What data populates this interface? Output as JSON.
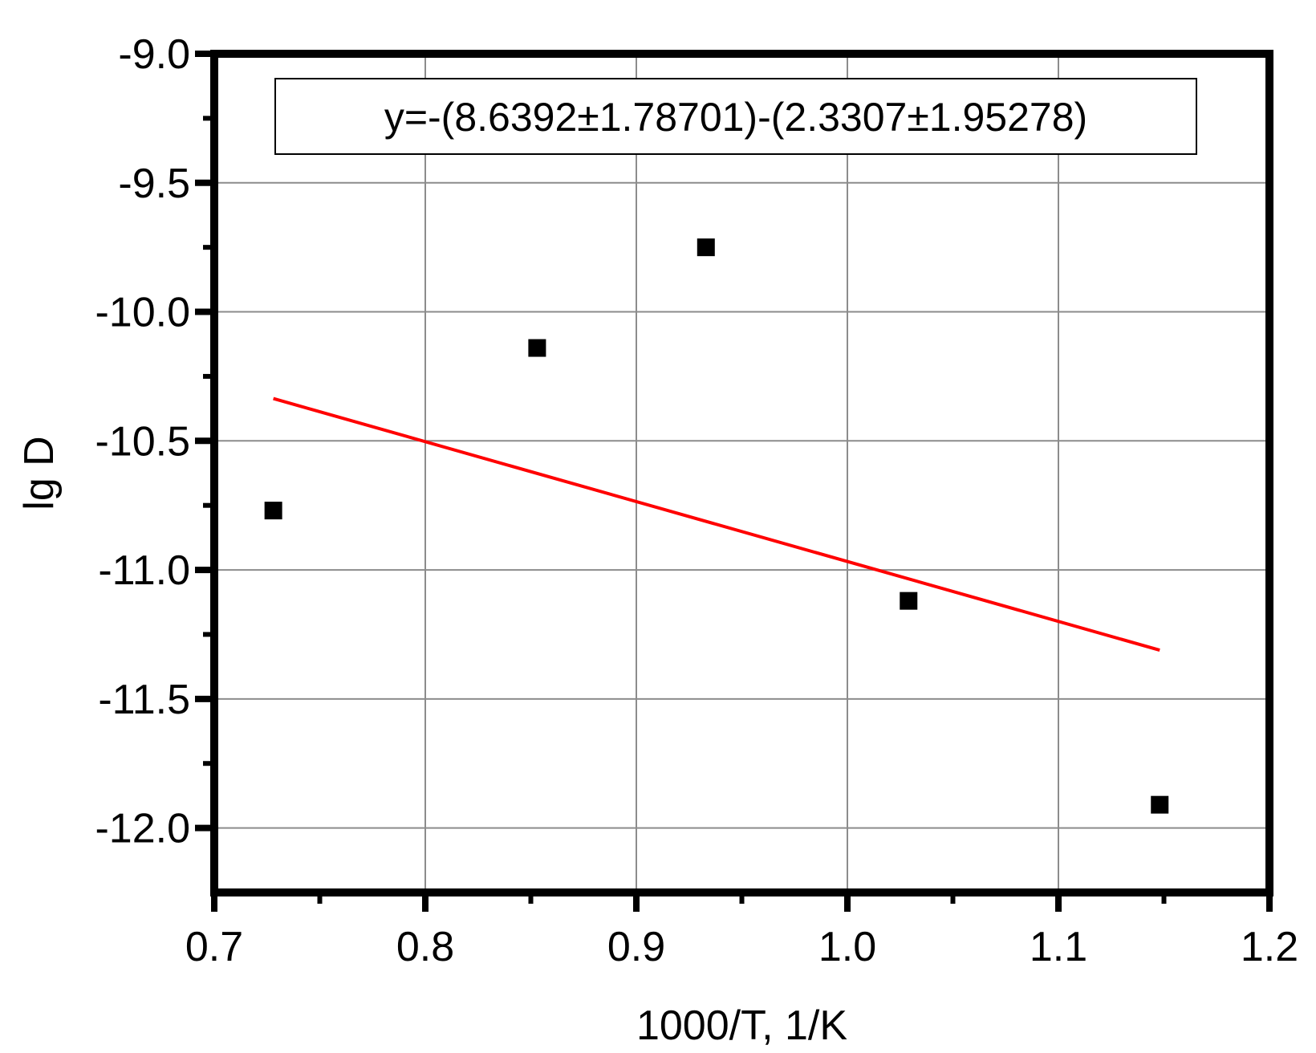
{
  "chart_data": {
    "type": "scatter",
    "xlabel": "1000/T, 1/K",
    "ylabel": "lg D",
    "xlim": [
      0.7,
      1.2
    ],
    "ylim": [
      -12.25,
      -9.0
    ],
    "xticks": [
      0.7,
      0.8,
      0.9,
      1.0,
      1.1,
      1.2
    ],
    "xtick_labels": [
      "0.7",
      "0.8",
      "0.9",
      "1.0",
      "1.1",
      "1.2"
    ],
    "yticks": [
      -9.0,
      -9.5,
      -10.0,
      -10.5,
      -11.0,
      -11.5,
      -12.0
    ],
    "ytick_labels": [
      "-9.0",
      "-9.5",
      "-10.0",
      "-10.5",
      "-11.0",
      "-11.5",
      "-12.0"
    ],
    "grid": true,
    "series": [
      {
        "type": "scatter",
        "marker": "square",
        "color": "#000000",
        "x": [
          0.728,
          0.853,
          0.933,
          1.029,
          1.148
        ],
        "y": [
          -10.77,
          -10.14,
          -9.75,
          -11.12,
          -11.91
        ]
      },
      {
        "type": "line",
        "color": "#ff0000",
        "x": [
          0.728,
          1.148
        ],
        "y": [
          -10.336,
          -11.311
        ]
      }
    ],
    "annotation": "y=-(8.6392±1.78701)-(2.3307±1.95278)"
  }
}
